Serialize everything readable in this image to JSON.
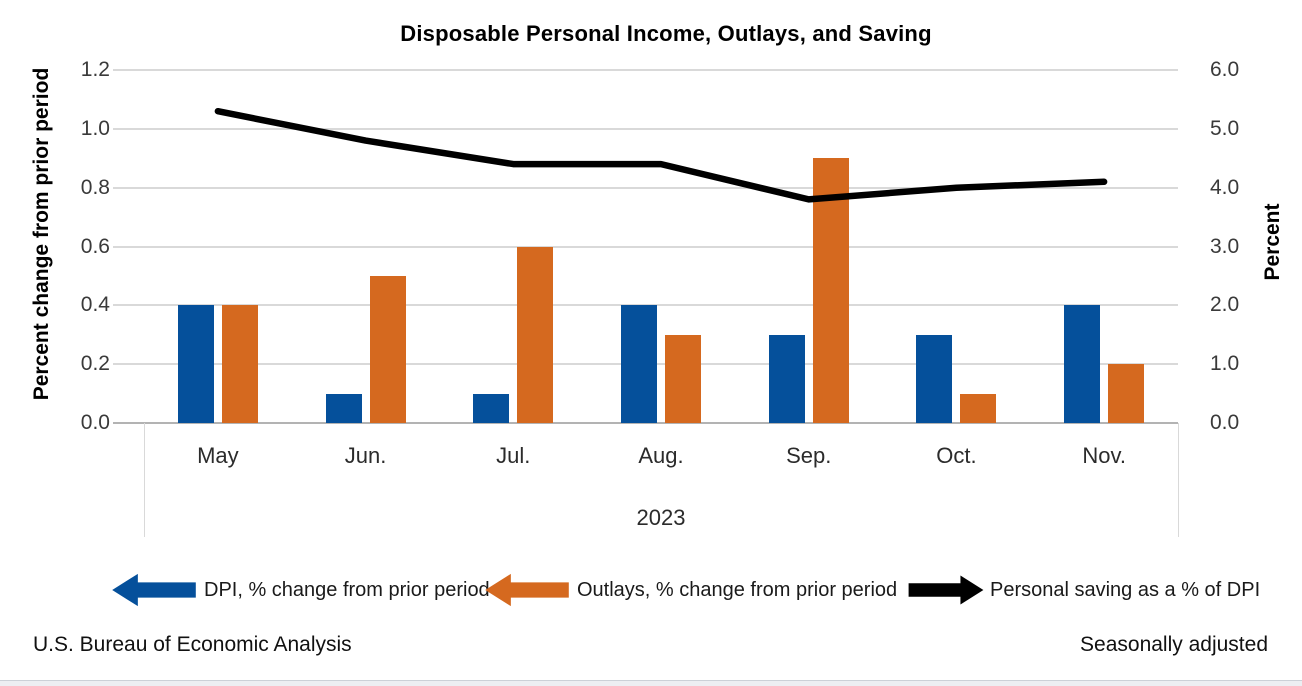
{
  "title": "Disposable Personal Income, Outlays, and Saving",
  "footer": {
    "source": "U.S. Bureau of Economic Analysis",
    "note": "Seasonally adjusted"
  },
  "legend": {
    "items": [
      {
        "label": "DPI, % change from prior period",
        "color": "#05509b",
        "arrow": "left",
        "icon": "blue-left-arrow"
      },
      {
        "label": "Outlays, % change from prior period",
        "color": "#d5691f",
        "arrow": "left",
        "icon": "orange-left-arrow"
      },
      {
        "label": "Personal saving as a % of DPI",
        "color": "#000000",
        "arrow": "right",
        "icon": "black-right-arrow"
      }
    ]
  },
  "chart_data": {
    "type": "bar",
    "subtype": "grouped-bars-with-line",
    "categories": [
      "May",
      "Jun.",
      "Jul.",
      "Aug.",
      "Sep.",
      "Oct.",
      "Nov."
    ],
    "x_group_label": "2023",
    "series": [
      {
        "name": "DPI, % change from prior period",
        "kind": "bar",
        "axis": "left",
        "color": "#05509b",
        "values": [
          0.4,
          0.1,
          0.1,
          0.4,
          0.3,
          0.3,
          0.4
        ]
      },
      {
        "name": "Outlays, % change from prior period",
        "kind": "bar",
        "axis": "left",
        "color": "#d5691f",
        "values": [
          0.4,
          0.5,
          0.6,
          0.3,
          0.9,
          0.1,
          0.2
        ]
      },
      {
        "name": "Personal saving as a % of DPI",
        "kind": "line",
        "axis": "right",
        "color": "#000000",
        "values": [
          5.3,
          4.8,
          4.4,
          4.4,
          3.8,
          4.0,
          4.1
        ]
      }
    ],
    "left_axis": {
      "title": "Percent change from prior period",
      "min": 0.0,
      "max": 1.2,
      "tick_step": 0.2,
      "ticks": [
        "1.2",
        "1.0",
        "0.8",
        "0.6",
        "0.4",
        "0.2",
        "0.0"
      ]
    },
    "right_axis": {
      "title": "Percent",
      "min": 0.0,
      "max": 6.0,
      "tick_step": 1.0,
      "ticks": [
        "6.0",
        "5.0",
        "4.0",
        "3.0",
        "2.0",
        "1.0",
        "0.0"
      ]
    },
    "grid": true,
    "legend_position": "bottom"
  }
}
